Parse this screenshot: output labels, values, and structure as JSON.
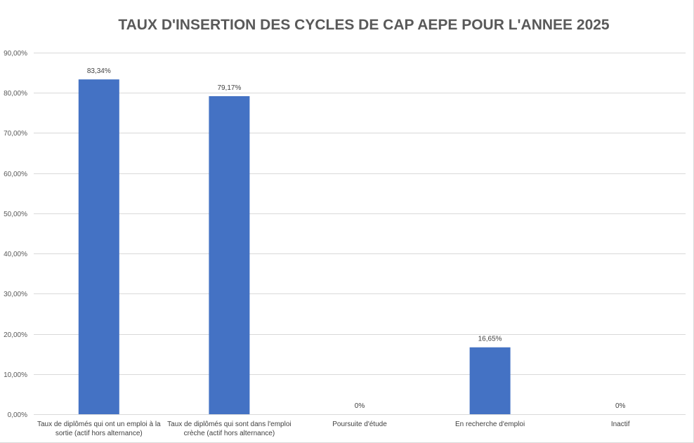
{
  "chart_data": {
    "type": "bar",
    "title": "TAUX D'INSERTION DES CYCLES DE CAP AEPE POUR L'ANNEE 2025",
    "categories": [
      [
        "Taux de diplômés qui ont un emploi à la",
        "sortie (actif hors alternance)"
      ],
      [
        "Taux de diplômés qui sont dans l'emploi",
        "crèche (actif hors alternance)"
      ],
      [
        "Poursuite d'étude"
      ],
      [
        "En recherche d'emploi"
      ],
      [
        "Inactif"
      ]
    ],
    "values": [
      83.34,
      79.17,
      0,
      16.65,
      0
    ],
    "data_labels": [
      "83,34%",
      "79,17%",
      "0%",
      "16,65%",
      "0%"
    ],
    "ylim": [
      0,
      90
    ],
    "yticks": [
      0,
      10,
      20,
      30,
      40,
      50,
      60,
      70,
      80,
      90
    ],
    "ytick_labels": [
      "0,00%",
      "10,00%",
      "20,00%",
      "30,00%",
      "40,00%",
      "50,00%",
      "60,00%",
      "70,00%",
      "80,00%",
      "90,00%"
    ],
    "bar_color": "#4472c4",
    "grid_color": "#d9d9d9",
    "grid": true,
    "legend": "none"
  }
}
